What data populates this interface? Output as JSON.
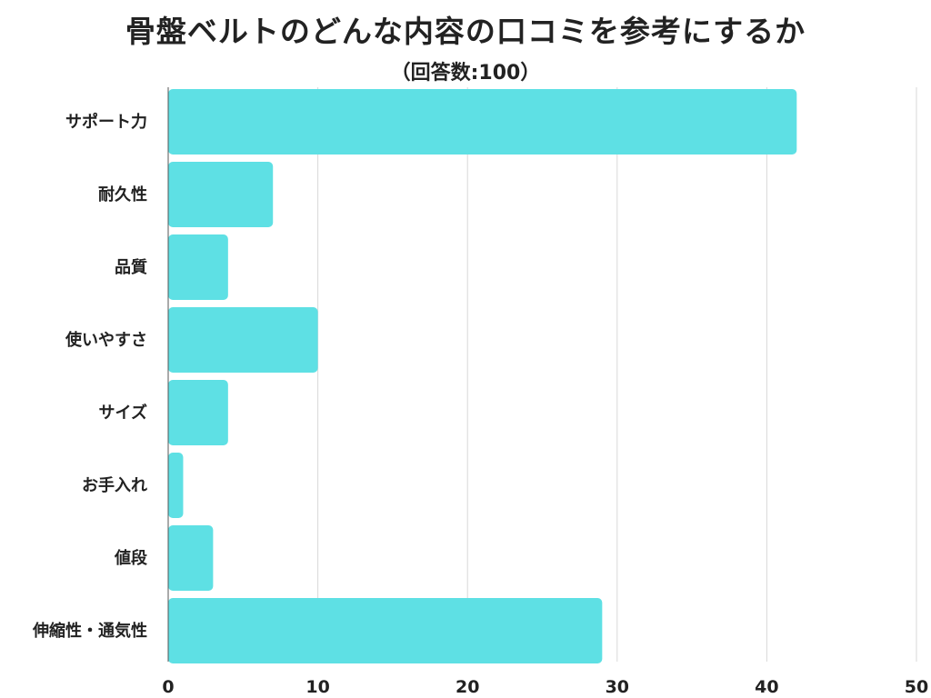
{
  "header": {
    "title": "骨盤ベルトのどんな内容の口コミを参考にするか",
    "subtitle": "（回答数:100）"
  },
  "chart_data": {
    "type": "bar",
    "orientation": "horizontal",
    "title": "骨盤ベルトのどんな内容の口コミを参考にするか",
    "subtitle": "（回答数:100）",
    "categories": [
      "サポート力",
      "耐久性",
      "品質",
      "使いやすさ",
      "サイズ",
      "お手入れ",
      "値段",
      "伸縮性・通気性"
    ],
    "values": [
      42,
      7,
      4,
      10,
      4,
      1,
      3,
      29
    ],
    "xlim": [
      0,
      50
    ],
    "xticks": [
      0,
      10,
      20,
      30,
      40,
      50
    ],
    "xlabel": "",
    "ylabel": "",
    "grid": true,
    "legend": "none",
    "colors": {
      "bar": "#5ee0e4",
      "grid": "#d8d8d8",
      "axis": "#555555",
      "text": "#222222"
    }
  }
}
